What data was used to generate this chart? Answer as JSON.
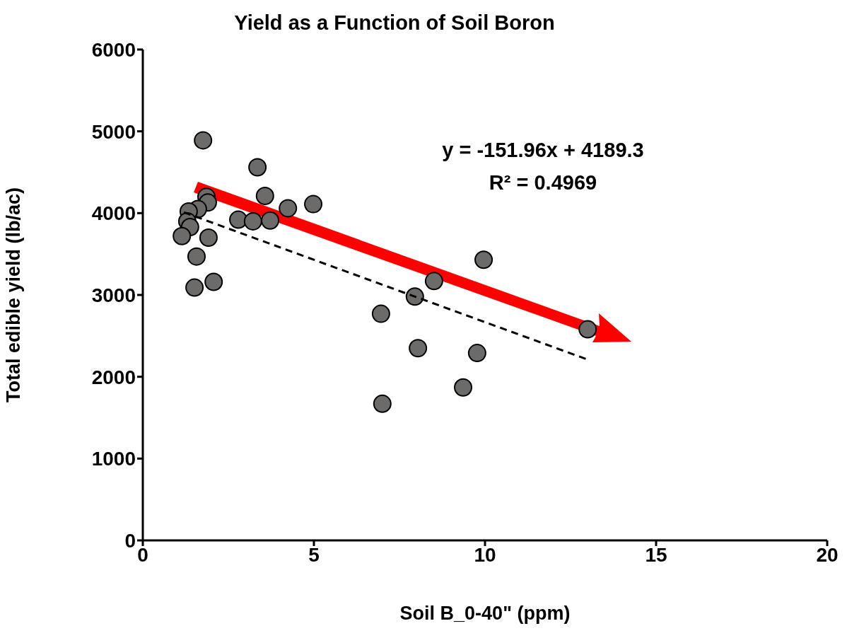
{
  "chart_data": {
    "type": "scatter",
    "title": "Yield as a Function of Soil Boron",
    "xlabel": "Soil B_0-40\" (ppm)",
    "ylabel": "Total edible yield (lb/ac)",
    "xlim": [
      0,
      20
    ],
    "xticks": [
      0,
      5,
      10,
      15,
      20
    ],
    "ylim": [
      0,
      6000
    ],
    "yticks": [
      0,
      1000,
      2000,
      3000,
      4000,
      5000,
      6000
    ],
    "grid": false,
    "marker": "circle",
    "annotations": [
      "y = -151.96x + 4189.3",
      "R² = 0.4969"
    ],
    "series": [
      {
        "color": "#6d6a6a",
        "x": [
          1.76,
          3.35,
          3.57,
          1.86,
          1.9,
          4.24,
          4.98,
          1.61,
          1.34,
          1.3,
          1.38,
          1.14,
          1.92,
          1.57,
          1.51,
          2.07,
          2.79,
          3.22,
          3.72,
          9.96,
          8.51,
          7.95,
          6.96,
          8.04,
          9.77,
          9.36,
          7.0,
          13.0
        ],
        "values": [
          4890,
          4560,
          4210,
          4200,
          4130,
          4060,
          4110,
          4050,
          4020,
          3900,
          3830,
          3720,
          3700,
          3470,
          3090,
          3160,
          3920,
          3900,
          3910,
          3430,
          3170,
          2980,
          2770,
          2350,
          2290,
          1870,
          1670,
          2580
        ]
      },
      {
        "type": "line",
        "color": "#000000",
        "line_style": "dashed",
        "marker": "none",
        "x": [
          1.2,
          13.0
        ],
        "values": [
          4010,
          2210
        ]
      }
    ]
  }
}
